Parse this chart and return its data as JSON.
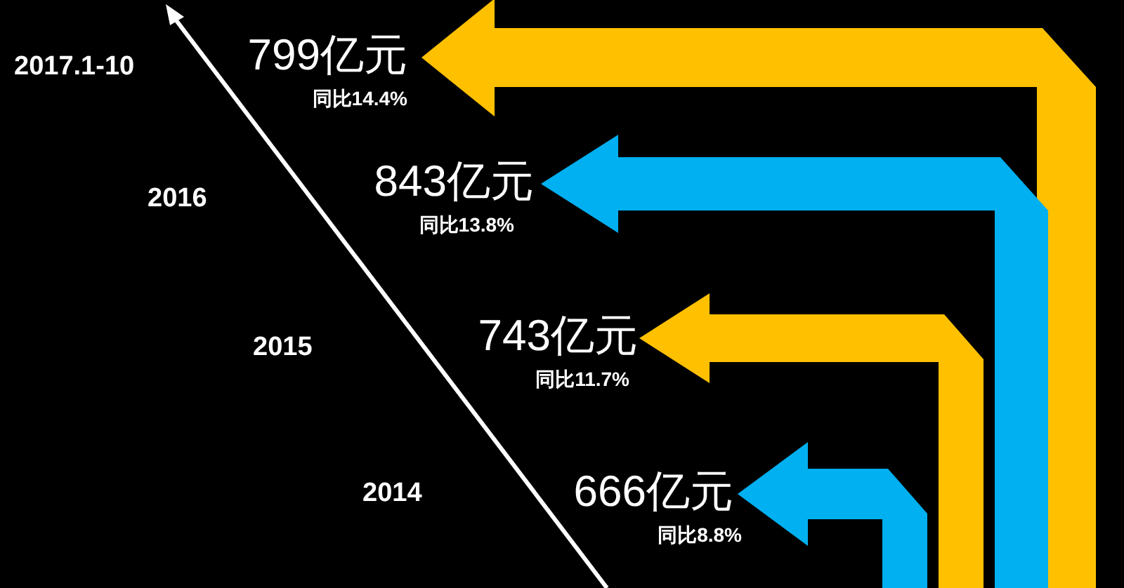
{
  "chart_data": {
    "type": "other",
    "categories": [
      "2017.1-10",
      "2016",
      "2015",
      "2014"
    ],
    "values": [
      799,
      843,
      743,
      666
    ],
    "value_labels": [
      "799亿元",
      "843亿元",
      "743亿元",
      "666亿元"
    ],
    "annotations": [
      "同比14.4%",
      "同比13.8%",
      "同比11.7%",
      "同比8.8%"
    ],
    "colors": [
      "#ffc000",
      "#00b0f0",
      "#ffc000",
      "#00b0f0"
    ]
  }
}
